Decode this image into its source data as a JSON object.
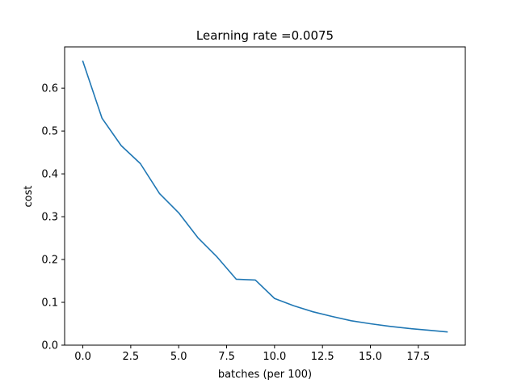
{
  "chart_data": {
    "type": "line",
    "title": "Learning rate =0.0075",
    "xlabel": "batches (per 100)",
    "ylabel": "cost",
    "xlim": [
      -0.95,
      19.95
    ],
    "ylim": [
      0.0,
      0.6965
    ],
    "xticks": [
      0.0,
      2.5,
      5.0,
      7.5,
      10.0,
      12.5,
      15.0,
      17.5
    ],
    "xtick_labels": [
      "0.0",
      "2.5",
      "5.0",
      "7.5",
      "10.0",
      "12.5",
      "15.0",
      "17.5"
    ],
    "yticks": [
      0.0,
      0.1,
      0.2,
      0.3,
      0.4,
      0.5,
      0.6
    ],
    "ytick_labels": [
      "0.0",
      "0.1",
      "0.2",
      "0.3",
      "0.4",
      "0.5",
      "0.6"
    ],
    "grid": false,
    "line_color": "#1f77b4",
    "series": [
      {
        "x": [
          0,
          1,
          2,
          3,
          4,
          5,
          6,
          7,
          8,
          9,
          10,
          11,
          12,
          13,
          14,
          15,
          16,
          17,
          18,
          19
        ],
        "values": [
          0.663,
          0.53,
          0.466,
          0.424,
          0.354,
          0.309,
          0.251,
          0.206,
          0.154,
          0.152,
          0.109,
          0.092,
          0.078,
          0.067,
          0.057,
          0.05,
          0.044,
          0.039,
          0.035,
          0.031
        ]
      }
    ]
  }
}
